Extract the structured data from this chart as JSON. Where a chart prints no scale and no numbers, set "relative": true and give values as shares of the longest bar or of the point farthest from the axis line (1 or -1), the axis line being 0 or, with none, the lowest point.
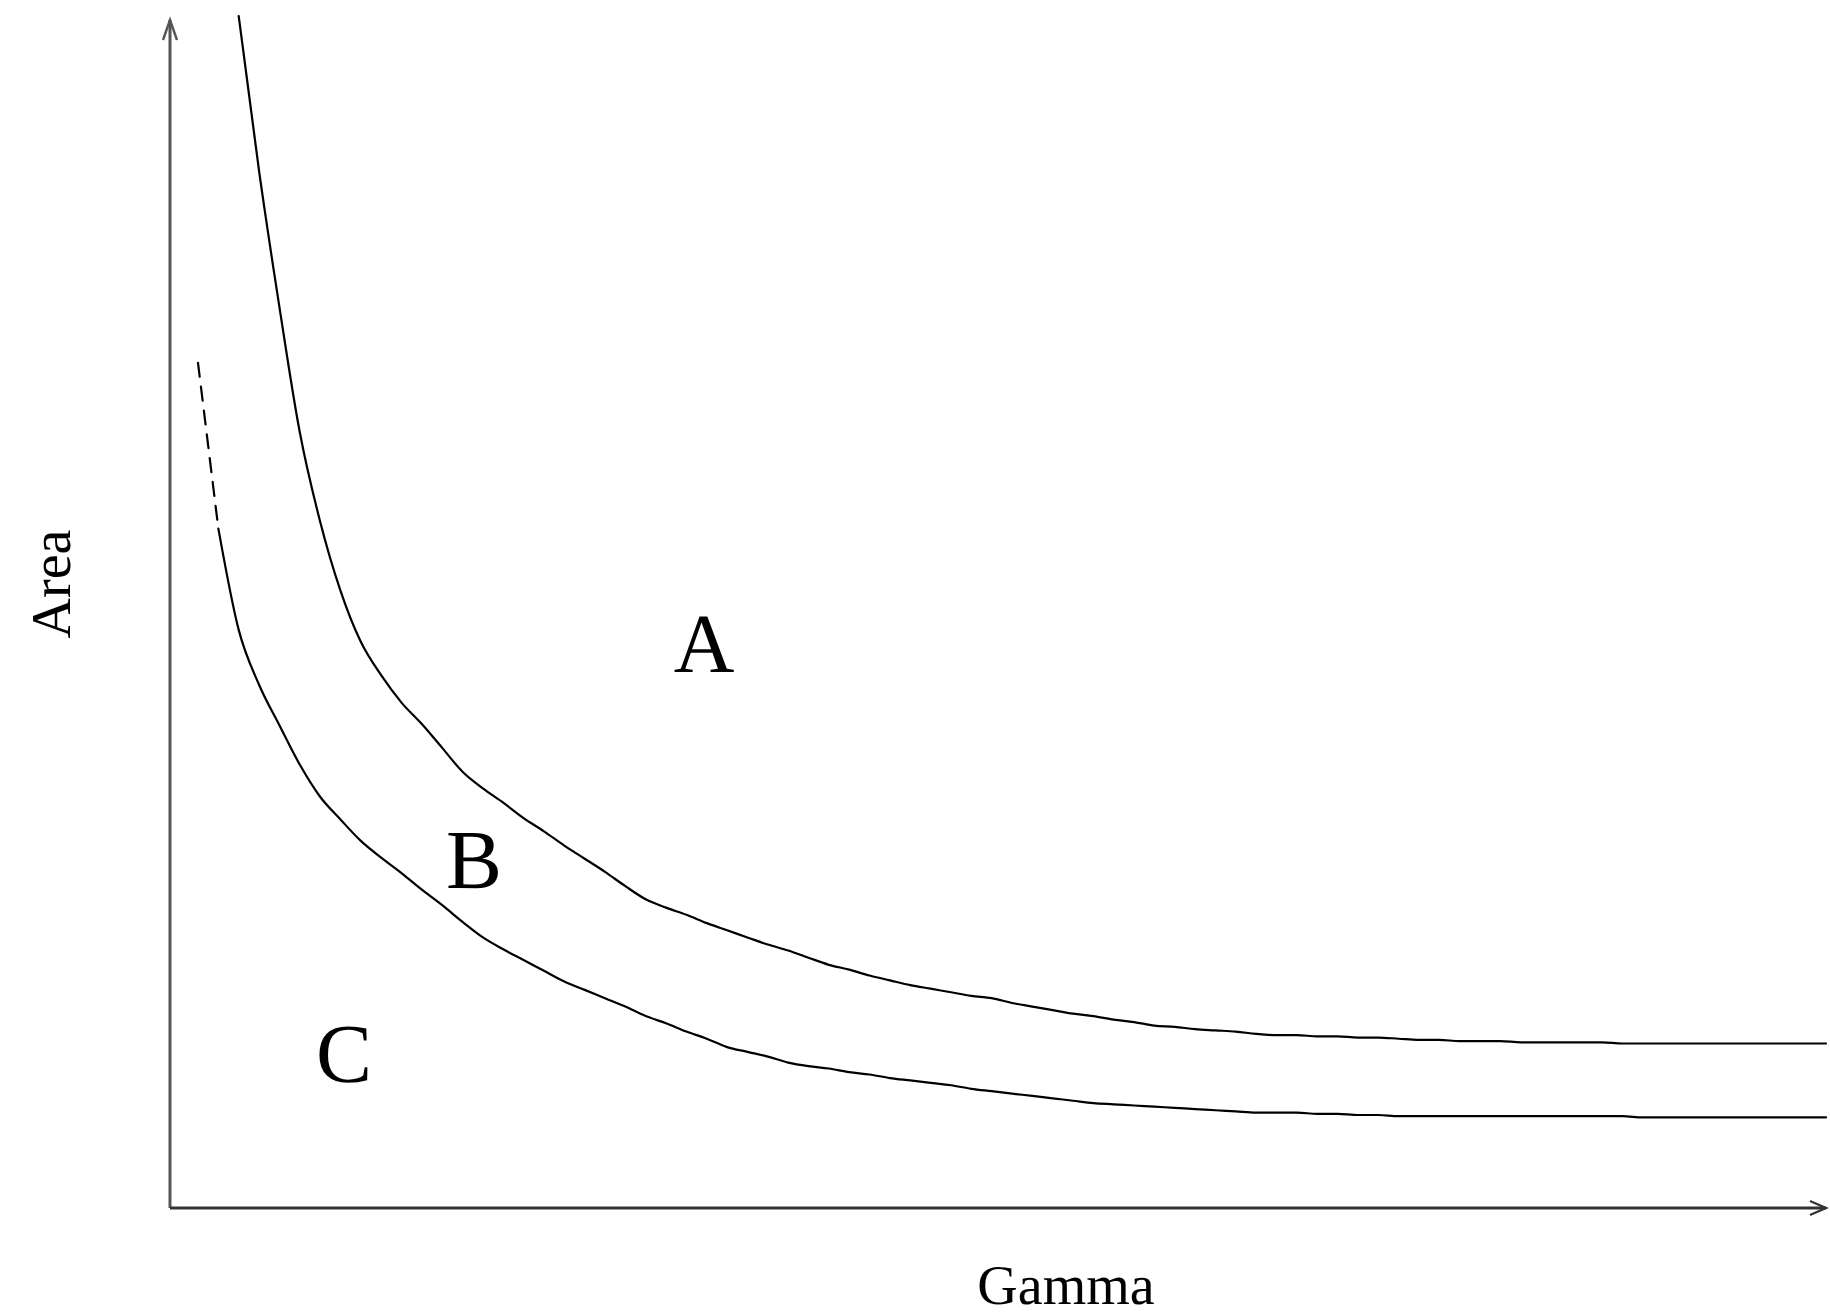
{
  "chart_data": {
    "type": "line",
    "relative": true,
    "xlabel": "Gamma",
    "ylabel": "Area",
    "annotations": [
      "A",
      "B",
      "C"
    ],
    "categories": [
      null,
      null,
      null,
      null,
      null,
      null,
      null,
      null,
      null,
      null,
      null,
      null,
      null,
      null,
      null,
      null,
      null,
      null,
      null,
      null,
      null,
      null,
      null,
      null,
      null,
      null,
      null,
      null,
      null,
      null,
      null,
      null,
      null,
      null,
      null,
      null,
      null,
      null,
      null,
      null,
      null,
      null,
      null,
      null,
      null,
      null,
      null,
      null,
      null,
      null,
      null,
      null,
      null,
      null,
      null,
      null,
      null,
      null,
      null,
      null,
      null,
      null,
      null,
      null,
      null,
      null,
      null,
      null,
      null,
      null,
      null,
      null,
      null,
      null,
      null,
      null,
      null,
      null,
      null,
      null,
      null
    ],
    "series": [
      {
        "color": "#000000",
        "line_style": "solid",
        "values": [
          null,
          null,
          1.0,
          0.87,
          0.756,
          0.651,
          0.576,
          0.518,
          0.475,
          0.447,
          0.424,
          0.406,
          0.386,
          0.366,
          0.352,
          0.34,
          0.327,
          0.316,
          0.304,
          0.293,
          0.282,
          0.27,
          0.259,
          0.252,
          0.246,
          0.239,
          0.233,
          0.227,
          0.221,
          0.216,
          0.21,
          0.204,
          0.2,
          0.195,
          0.191,
          0.187,
          0.184,
          0.181,
          0.178,
          0.176,
          0.172,
          0.169,
          0.166,
          0.163,
          0.161,
          0.158,
          0.156,
          0.153,
          0.152,
          0.15,
          0.149,
          0.148,
          0.146,
          0.145,
          0.145,
          0.144,
          0.144,
          0.143,
          0.143,
          0.142,
          0.141,
          0.141,
          0.14,
          0.14,
          0.14,
          0.139,
          0.139,
          0.139,
          0.139,
          0.139,
          0.138,
          0.138,
          0.138,
          0.138,
          0.138,
          0.138,
          0.138,
          0.138,
          0.138,
          0.138,
          0.138
        ]
      },
      {
        "color": "#000000",
        "line_style": "dashed",
        "values": [
          0.709,
          0.57,
          null,
          null,
          null,
          null,
          null,
          null,
          null,
          null,
          null,
          null,
          null,
          null,
          null,
          null,
          null,
          null,
          null,
          null,
          null,
          null,
          null,
          null,
          null,
          null,
          null,
          null,
          null,
          null,
          null,
          null,
          null,
          null,
          null,
          null,
          null,
          null,
          null,
          null,
          null,
          null,
          null,
          null,
          null,
          null,
          null,
          null,
          null,
          null,
          null,
          null,
          null,
          null,
          null,
          null,
          null,
          null,
          null,
          null,
          null,
          null,
          null,
          null,
          null,
          null,
          null,
          null,
          null,
          null,
          null,
          null,
          null,
          null,
          null,
          null,
          null,
          null,
          null,
          null,
          null
        ]
      },
      {
        "color": "#000000",
        "line_style": "solid",
        "values": [
          null,
          0.57,
          0.485,
          0.439,
          0.405,
          0.372,
          0.345,
          0.326,
          0.308,
          0.294,
          0.281,
          0.267,
          0.254,
          0.24,
          0.227,
          0.217,
          0.208,
          0.199,
          0.19,
          0.183,
          0.176,
          0.169,
          0.161,
          0.155,
          0.148,
          0.142,
          0.135,
          0.131,
          0.127,
          0.122,
          0.119,
          0.117,
          0.114,
          0.112,
          0.109,
          0.107,
          0.105,
          0.103,
          0.1,
          0.098,
          0.096,
          0.094,
          0.092,
          0.09,
          0.088,
          0.087,
          0.086,
          0.085,
          0.084,
          0.083,
          0.082,
          0.081,
          0.08,
          0.08,
          0.08,
          0.079,
          0.079,
          0.078,
          0.078,
          0.077,
          0.077,
          0.077,
          0.077,
          0.077,
          0.077,
          0.077,
          0.077,
          0.077,
          0.077,
          0.077,
          0.077,
          0.076,
          0.076,
          0.076,
          0.076,
          0.076,
          0.076,
          0.076,
          0.076,
          0.076,
          0.076
        ]
      }
    ]
  }
}
